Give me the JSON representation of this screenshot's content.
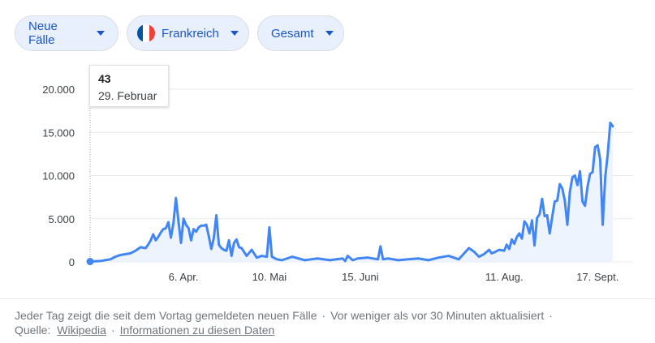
{
  "filters": {
    "metric": "Neue Fälle",
    "country": "Frankreich",
    "range": "Gesamt",
    "flag_colors": [
      "#0055a4",
      "#ffffff",
      "#ef4135"
    ]
  },
  "tooltip": {
    "value": "43",
    "date": "29. Februar"
  },
  "footer": {
    "text": "Jeder Tag zeigt die seit dem Vortag gemeldeten neuen Fälle",
    "updated": "Vor weniger als vor 30 Minuten aktualisiert",
    "source_label": "Quelle:",
    "source_link": "Wikipedia",
    "info_link": "Informationen zu diesen Daten",
    "separator": "·"
  },
  "colors": {
    "line": "#4285f4",
    "grid": "#e8eaed",
    "fill": "#eef4fe"
  },
  "chart_data": {
    "type": "area",
    "title": "",
    "xlabel": "",
    "ylabel": "",
    "ylim": [
      0,
      20000
    ],
    "y_ticks": [
      0,
      5000,
      10000,
      15000,
      20000
    ],
    "y_tick_labels": [
      "0",
      "5.000",
      "10.000",
      "15.000",
      "20.000"
    ],
    "x_ticks": [
      {
        "day": 37,
        "label": "6. Apr."
      },
      {
        "day": 71,
        "label": "10. Mai"
      },
      {
        "day": 107,
        "label": "15. Juni"
      },
      {
        "day": 164,
        "label": "11. Aug."
      },
      {
        "day": 201,
        "label": "17. Sept."
      }
    ],
    "x_range": [
      0,
      207
    ],
    "highlight_index": 0,
    "series": [
      {
        "x": [
          0,
          4,
          8,
          10,
          12,
          16,
          18,
          20,
          22,
          23,
          24,
          25,
          26,
          27,
          28,
          29,
          30,
          31,
          32,
          33,
          34,
          35,
          36,
          37,
          38,
          39,
          40,
          41,
          42,
          43,
          44,
          45,
          46,
          47,
          48,
          49,
          50,
          51,
          52,
          53,
          54,
          55,
          56,
          57,
          58,
          59,
          60,
          62,
          64,
          66,
          68,
          70,
          71,
          72,
          74,
          76,
          80,
          85,
          90,
          95,
          100,
          101,
          102,
          104,
          106,
          110,
          114,
          115,
          116,
          118,
          122,
          126,
          130,
          134,
          138,
          142,
          146,
          150,
          152,
          154,
          156,
          158,
          159,
          160,
          162,
          164,
          165,
          166,
          167,
          168,
          169,
          170,
          171,
          172,
          173,
          174,
          175,
          176,
          177,
          178,
          179,
          180,
          181,
          182,
          183,
          184,
          185,
          186,
          187,
          188,
          189,
          190,
          191,
          192,
          193,
          194,
          195,
          196,
          197,
          198,
          199,
          200,
          201,
          202,
          203,
          204,
          205,
          206,
          207
        ],
        "y": [
          43,
          100,
          300,
          600,
          800,
          1000,
          1300,
          1700,
          1600,
          2000,
          2500,
          3200,
          2500,
          2900,
          3400,
          3800,
          3900,
          4600,
          2800,
          4500,
          7400,
          4700,
          2200,
          5000,
          4300,
          3900,
          2500,
          3800,
          3500,
          4000,
          4200,
          4200,
          4300,
          3000,
          1500,
          2800,
          5400,
          2000,
          1600,
          1400,
          1300,
          2500,
          700,
          2200,
          2600,
          1700,
          1600,
          700,
          1400,
          500,
          700,
          600,
          4000,
          600,
          300,
          200,
          600,
          200,
          400,
          200,
          400,
          100,
          700,
          200,
          400,
          500,
          300,
          1800,
          300,
          400,
          200,
          300,
          400,
          200,
          500,
          700,
          300,
          1600,
          1200,
          600,
          900,
          1400,
          1000,
          1100,
          1400,
          1300,
          2000,
          1500,
          2600,
          2100,
          2900,
          3300,
          2700,
          4700,
          4300,
          3300,
          4800,
          1900,
          5100,
          5500,
          7300,
          5300,
          5400,
          3300,
          5200,
          7000,
          7100,
          9000,
          8500,
          7100,
          4300,
          8100,
          9800,
          10000,
          8900,
          10500,
          7000,
          6500,
          8700,
          10200,
          10400,
          13300,
          13500,
          11900,
          4300,
          9800,
          12500,
          16100,
          15700
        ]
      }
    ]
  }
}
